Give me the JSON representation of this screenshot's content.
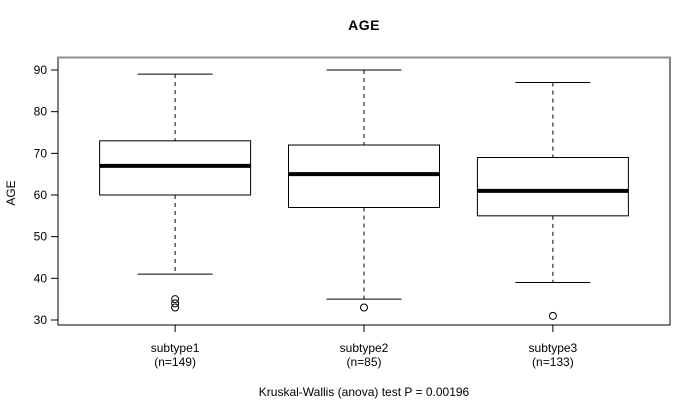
{
  "page": {
    "background": "#ffffff"
  },
  "chart_data": {
    "type": "boxplot",
    "title": "AGE",
    "ylabel": "AGE",
    "xlabel": "",
    "footer": "Kruskal-Wallis (anova) test P = 0.00196",
    "yticks": [
      30,
      40,
      50,
      60,
      70,
      80,
      90
    ],
    "ylim": [
      28,
      93
    ],
    "grid": false,
    "legend": "none",
    "colors": {
      "stroke": "#000000",
      "box_fill": "#ffffff",
      "plot_border_top": "#8c8c8c",
      "text": "#000000"
    },
    "groups": [
      {
        "label": "subtype1",
        "sublabel": "(n=149)",
        "n": 149,
        "whisker_low": 41,
        "q1": 60,
        "median": 67,
        "q3": 73,
        "whisker_high": 89,
        "outliers": [
          35,
          34,
          33
        ]
      },
      {
        "label": "subtype2",
        "sublabel": "(n=85)",
        "n": 85,
        "whisker_low": 35,
        "q1": 57,
        "median": 65,
        "q3": 72,
        "whisker_high": 90,
        "outliers": [
          33
        ]
      },
      {
        "label": "subtype3",
        "sublabel": "(n=133)",
        "n": 133,
        "whisker_low": 39,
        "q1": 55,
        "median": 61,
        "q3": 69,
        "whisker_high": 87,
        "outliers": [
          31
        ]
      }
    ]
  }
}
